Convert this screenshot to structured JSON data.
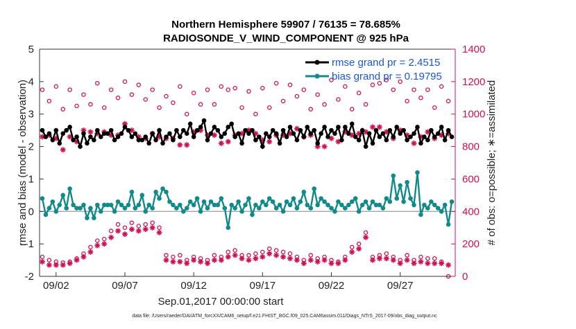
{
  "chart_data": {
    "type": "line",
    "title_line1": "Northern Hemisphere 59907 / 76135 = 78.685%",
    "title_line2": "RADIOSONDE_V_WIND_COMPONENT @ 925 hPa",
    "xlabel": "Sep.01,2017 00:00:00 start",
    "ylabel_left": "rmse and bias (model - observation)",
    "ylabel_right": "# of obs: o=possible; ∗=assimilated",
    "x_tick_labels": [
      "09/02",
      "09/07",
      "09/12",
      "09/17",
      "09/22",
      "09/27"
    ],
    "x_ticks": [
      2,
      7,
      12,
      17,
      22,
      27
    ],
    "xlim": [
      0.8,
      31.0
    ],
    "y_left_ticks": [
      "-2",
      "-1",
      "0",
      "1",
      "2",
      "3",
      "4",
      "5"
    ],
    "ylim_left": [
      -2,
      5
    ],
    "y_right_ticks": [
      "0",
      "200",
      "400",
      "600",
      "800",
      "1000",
      "1200",
      "1400"
    ],
    "ylim_right": [
      0,
      1400
    ],
    "legend": {
      "position": "top-right",
      "entries": [
        "rmse grand pr = 2.4515",
        "bias grand pr = 0.19795"
      ]
    },
    "footer": "data file: /Users/raeder/DAI/ATM_forcXX/CAM6_setup/f.e21.FHIST_BGC.f09_025.CAM6assim.011/Diags_NTrS_2017-09/obs_diag_output.nc",
    "colors": {
      "rmse": "#000000",
      "bias": "#138a8a",
      "obs": "#cc1155",
      "zero": "#aaaaaa",
      "legend_text": "#1a56d6"
    },
    "series": [
      {
        "name": "rmse",
        "x": [
          1.0,
          1.25,
          1.5,
          1.75,
          2.0,
          2.25,
          2.5,
          2.75,
          3.0,
          3.25,
          3.5,
          3.75,
          4.0,
          4.25,
          4.5,
          4.75,
          5.0,
          5.25,
          5.5,
          5.75,
          6.0,
          6.25,
          6.5,
          6.75,
          7.0,
          7.25,
          7.5,
          7.75,
          8.0,
          8.25,
          8.5,
          8.75,
          9.0,
          9.25,
          9.5,
          9.75,
          10.0,
          10.25,
          10.5,
          10.75,
          11.0,
          11.25,
          11.5,
          11.75,
          12.0,
          12.25,
          12.5,
          12.75,
          13.0,
          13.25,
          13.5,
          13.75,
          14.0,
          14.25,
          14.5,
          14.75,
          15.0,
          15.25,
          15.5,
          15.75,
          16.0,
          16.25,
          16.5,
          16.75,
          17.0,
          17.25,
          17.5,
          17.75,
          18.0,
          18.25,
          18.5,
          18.75,
          19.0,
          19.25,
          19.5,
          19.75,
          20.0,
          20.25,
          20.5,
          20.75,
          21.0,
          21.25,
          21.5,
          21.75,
          22.0,
          22.25,
          22.5,
          22.75,
          23.0,
          23.25,
          23.5,
          23.75,
          24.0,
          24.25,
          24.5,
          24.75,
          25.0,
          25.25,
          25.5,
          25.75,
          26.0,
          26.25,
          26.5,
          26.75,
          27.0,
          27.25,
          27.5,
          27.75,
          28.0,
          28.25,
          28.5,
          28.75,
          29.0,
          29.25,
          29.5,
          29.75,
          30.0,
          30.25,
          30.5,
          30.75
        ],
        "values": [
          2.5,
          2.3,
          2.4,
          2.2,
          2.5,
          2.1,
          2.4,
          2.5,
          2.6,
          2.2,
          2.3,
          2.0,
          2.4,
          2.1,
          2.3,
          2.2,
          2.5,
          2.3,
          2.4,
          2.4,
          2.5,
          2.2,
          2.3,
          2.4,
          2.6,
          2.5,
          2.3,
          2.4,
          2.2,
          2.2,
          2.3,
          2.1,
          2.4,
          2.2,
          2.5,
          2.1,
          2.3,
          2.4,
          2.2,
          2.5,
          2.3,
          2.5,
          2.4,
          2.7,
          2.3,
          2.5,
          2.6,
          2.8,
          2.2,
          2.4,
          2.6,
          2.5,
          2.3,
          2.4,
          2.6,
          2.7,
          2.3,
          2.4,
          2.1,
          2.5,
          2.4,
          2.5,
          2.2,
          2.3,
          2.0,
          2.4,
          2.3,
          2.5,
          2.4,
          2.1,
          2.5,
          2.3,
          2.6,
          2.4,
          2.2,
          2.5,
          2.3,
          2.6,
          2.4,
          2.5,
          2.1,
          2.4,
          2.6,
          2.3,
          2.5,
          2.4,
          2.6,
          2.2,
          2.6,
          2.4,
          2.7,
          2.3,
          2.2,
          2.5,
          2.0,
          2.4,
          2.1,
          2.5,
          2.3,
          2.4,
          2.2,
          2.5,
          2.3,
          2.6,
          2.4,
          2.5,
          2.2,
          2.3,
          2.4,
          2.6,
          2.1,
          2.3,
          2.2,
          2.5,
          2.3,
          2.4,
          2.6,
          2.2,
          2.5,
          2.3
        ]
      },
      {
        "name": "bias",
        "x": [
          1.0,
          1.25,
          1.5,
          1.75,
          2.0,
          2.25,
          2.5,
          2.75,
          3.0,
          3.25,
          3.5,
          3.75,
          4.0,
          4.25,
          4.5,
          4.75,
          5.0,
          5.25,
          5.5,
          5.75,
          6.0,
          6.25,
          6.5,
          6.75,
          7.0,
          7.25,
          7.5,
          7.75,
          8.0,
          8.25,
          8.5,
          8.75,
          9.0,
          9.25,
          9.5,
          9.75,
          10.0,
          10.25,
          10.5,
          10.75,
          11.0,
          11.25,
          11.5,
          11.75,
          12.0,
          12.25,
          12.5,
          12.75,
          13.0,
          13.25,
          13.5,
          13.75,
          14.0,
          14.25,
          14.5,
          14.75,
          15.0,
          15.25,
          15.5,
          15.75,
          16.0,
          16.25,
          16.5,
          16.75,
          17.0,
          17.25,
          17.5,
          17.75,
          18.0,
          18.25,
          18.5,
          18.75,
          19.0,
          19.25,
          19.5,
          19.75,
          20.0,
          20.25,
          20.5,
          20.75,
          21.0,
          21.25,
          21.5,
          21.75,
          22.0,
          22.25,
          22.5,
          22.75,
          23.0,
          23.25,
          23.5,
          23.75,
          24.0,
          24.25,
          24.5,
          24.75,
          25.0,
          25.25,
          25.5,
          25.75,
          26.0,
          26.25,
          26.5,
          26.75,
          27.0,
          27.25,
          27.5,
          27.75,
          28.0,
          28.25,
          28.5,
          28.75,
          29.0,
          29.25,
          29.5,
          29.75,
          30.0,
          30.25,
          30.5,
          30.75
        ],
        "values": [
          0.4,
          -0.1,
          0.1,
          0.3,
          0.0,
          0.2,
          0.5,
          0.1,
          0.7,
          0.2,
          0.1,
          0.1,
          0.2,
          -0.2,
          0.1,
          -0.2,
          0.2,
          0.0,
          0.2,
          0.2,
          0.2,
          0.0,
          0.3,
          0.2,
          0.1,
          0.2,
          0.6,
          0.1,
          0.2,
          0.5,
          0.0,
          0.2,
          0.1,
          0.6,
          0.4,
          0.7,
          0.6,
          0.3,
          0.2,
          0.1,
          0.2,
          0.0,
          0.1,
          0.3,
          0.2,
          0.4,
          0.0,
          0.3,
          0.1,
          0.3,
          0.2,
          0.2,
          0.4,
          0.1,
          -0.5,
          0.2,
          0.1,
          0.3,
          0.0,
          0.2,
          0.4,
          -0.1,
          0.2,
          0.1,
          0.3,
          0.2,
          0.4,
          0.3,
          0.1,
          0.2,
          0.0,
          0.3,
          0.2,
          0.4,
          0.1,
          0.3,
          0.6,
          0.2,
          0.1,
          0.7,
          0.2,
          0.4,
          0.3,
          0.2,
          0.1,
          0.0,
          0.3,
          0.2,
          0.1,
          0.2,
          0.3,
          0.4,
          0.0,
          0.2,
          0.3,
          0.1,
          0.3,
          0.2,
          0.2,
          0.1,
          0.4,
          0.3,
          1.1,
          0.4,
          0.8,
          0.3,
          0.9,
          0.4,
          0.2,
          1.2,
          -0.1,
          0.2,
          0.1,
          0.3,
          0.2,
          0.1,
          0.0,
          0.2,
          -0.4,
          0.3
        ]
      },
      {
        "name": "obs_possible",
        "x": [
          1.0,
          1.5,
          2.0,
          2.5,
          3.0,
          3.5,
          4.0,
          4.5,
          5.0,
          5.5,
          6.0,
          6.5,
          7.0,
          7.5,
          8.0,
          8.5,
          9.0,
          9.5,
          10.0,
          10.5,
          11.0,
          11.5,
          12.0,
          12.5,
          13.0,
          13.5,
          14.0,
          14.5,
          15.0,
          15.5,
          16.0,
          16.5,
          17.0,
          17.5,
          18.0,
          18.5,
          19.0,
          19.5,
          20.0,
          20.5,
          21.0,
          21.5,
          22.0,
          22.5,
          23.0,
          23.5,
          24.0,
          24.5,
          25.0,
          25.5,
          26.0,
          26.5,
          27.0,
          27.5,
          28.0,
          28.5,
          29.0,
          29.5,
          30.0,
          30.5
        ],
        "values": [
          1150,
          1080,
          1170,
          1030,
          1150,
          1050,
          1120,
          1060,
          1190,
          1040,
          1150,
          1100,
          1200,
          1120,
          1180,
          1090,
          1150,
          1040,
          1110,
          1070,
          1170,
          1000,
          1130,
          1060,
          1150,
          1060,
          1170,
          1150,
          1160,
          1040,
          1140,
          1000,
          1160,
          1040,
          1190,
          1080,
          1180,
          1110,
          1150,
          1030,
          1120,
          1060,
          1210,
          1090,
          1170,
          1030,
          1130,
          1060,
          1180,
          1190,
          1210,
          1150,
          1200,
          1080,
          1150,
          1100,
          1150,
          1040,
          1170,
          1080
        ],
        "possible_low": [
          120,
          100,
          90,
          85,
          90,
          110,
          140,
          180,
          220,
          230,
          280,
          320,
          300,
          330,
          310,
          320,
          330,
          300,
          130,
          120,
          130,
          100,
          120,
          110,
          100,
          130,
          120,
          150,
          160,
          130,
          130,
          140,
          150,
          170,
          160,
          150,
          140,
          120,
          100,
          130,
          110,
          120,
          100,
          90,
          120,
          180,
          200,
          270,
          120,
          130,
          140,
          120,
          100,
          130,
          100,
          120,
          110,
          110,
          90,
          0
        ]
      },
      {
        "name": "obs_assimilated",
        "x": [
          1.0,
          1.5,
          2.0,
          2.5,
          3.0,
          3.5,
          4.0,
          4.5,
          5.0,
          5.5,
          6.0,
          6.5,
          7.0,
          7.5,
          8.0,
          8.5,
          9.0,
          9.5,
          10.0,
          10.5,
          11.0,
          11.5,
          12.0,
          12.5,
          13.0,
          13.5,
          14.0,
          14.5,
          15.0,
          15.5,
          16.0,
          16.5,
          17.0,
          17.5,
          18.0,
          18.5,
          19.0,
          19.5,
          20.0,
          20.5,
          21.0,
          21.5,
          22.0,
          22.5,
          23.0,
          23.5,
          24.0,
          24.5,
          25.0,
          25.5,
          26.0,
          26.5,
          27.0,
          27.5,
          28.0,
          28.5,
          29.0,
          29.5,
          30.0,
          30.5
        ],
        "values": [
          860,
          870,
          850,
          780,
          860,
          830,
          900,
          890,
          880,
          890,
          870,
          870,
          940,
          900,
          860,
          850,
          880,
          860,
          850,
          850,
          810,
          810,
          890,
          900,
          870,
          870,
          820,
          830,
          870,
          880,
          900,
          880,
          840,
          830,
          870,
          870,
          880,
          910,
          860,
          870,
          800,
          800,
          850,
          830,
          890,
          870,
          880,
          890,
          920,
          920,
          890,
          850,
          900,
          870,
          820,
          860,
          890,
          850,
          870,
          880
        ],
        "assimilated_low": [
          90,
          70,
          70,
          70,
          80,
          100,
          120,
          150,
          190,
          200,
          240,
          280,
          260,
          290,
          280,
          290,
          300,
          270,
          100,
          90,
          90,
          80,
          100,
          90,
          80,
          100,
          100,
          120,
          130,
          110,
          100,
          110,
          120,
          140,
          130,
          120,
          110,
          100,
          80,
          100,
          90,
          100,
          80,
          80,
          100,
          150,
          170,
          240,
          100,
          110,
          110,
          100,
          80,
          100,
          80,
          90,
          80,
          80,
          80,
          70
        ]
      }
    ]
  }
}
